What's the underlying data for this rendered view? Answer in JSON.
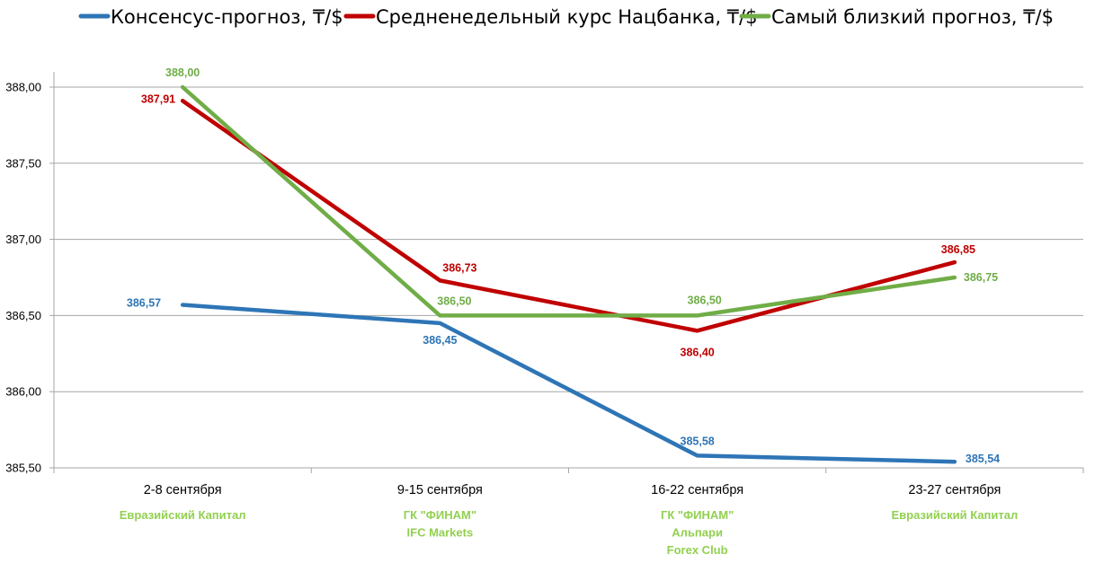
{
  "chart_data": {
    "type": "line",
    "title": "",
    "xlabel": "",
    "ylabel": "",
    "categories": [
      "2-8 сентября",
      "9-15 сентября",
      "16-22 сентября",
      "23-27 сентября"
    ],
    "category_firms": [
      [
        "Евразийский Капитал"
      ],
      [
        "ГК \"ФИНАМ\"",
        "IFC Markets"
      ],
      [
        "ГК \"ФИНАМ\"",
        "Альпари",
        "Forex Club"
      ],
      [
        "Евразийский Капитал"
      ]
    ],
    "ylim": [
      385.5,
      388.0
    ],
    "yticks": [
      388.0,
      387.5,
      387.0,
      386.5,
      386.0,
      385.5
    ],
    "ytick_labels": [
      "388,00",
      "387,50",
      "387,00",
      "386,50",
      "386,00",
      "385,50"
    ],
    "grid": true,
    "legend_position": "top",
    "series": [
      {
        "name": "Консенсус-прогноз, ₸/$",
        "color": "#2e75b6",
        "values": [
          386.57,
          386.45,
          385.58,
          385.54
        ],
        "labels": [
          "386,57",
          "386,45",
          "385,58",
          "385,54"
        ]
      },
      {
        "name": "Средненедельный курс Нацбанка, ₸/$",
        "color": "#c00000",
        "values": [
          387.91,
          386.73,
          386.4,
          386.85
        ],
        "labels": [
          "387,91",
          "386,73",
          "386,40",
          "386,85"
        ]
      },
      {
        "name": "Самый близкий прогноз, ₸/$",
        "color": "#70ad47",
        "values": [
          388.0,
          386.5,
          386.5,
          386.75
        ],
        "labels": [
          "388,00",
          "386,50",
          "386,50",
          "386,75"
        ]
      }
    ]
  }
}
